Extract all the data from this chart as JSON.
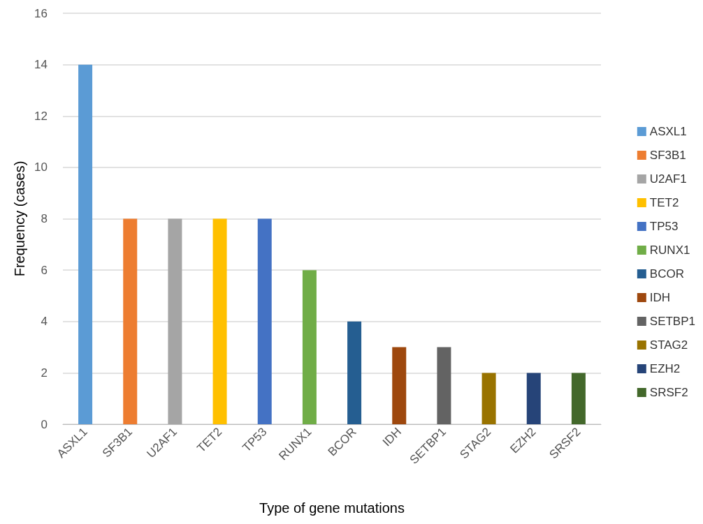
{
  "chart_data": {
    "type": "bar",
    "xlabel": "Type of gene mutations",
    "ylabel": "Frequency (cases)",
    "categories": [
      "ASXL1",
      "SF3B1",
      "U2AF1",
      "TET2",
      "TP53",
      "RUNX1",
      "BCOR",
      "IDH",
      "SETBP1",
      "STAG2",
      "EZH2",
      "SRSF2"
    ],
    "series": [
      {
        "name": "ASXL1",
        "color": "#5b9bd5",
        "values": [
          14,
          null,
          null,
          null,
          null,
          null,
          null,
          null,
          null,
          null,
          null,
          null
        ]
      },
      {
        "name": "SF3B1",
        "color": "#ed7d31",
        "values": [
          null,
          8,
          null,
          null,
          null,
          null,
          null,
          null,
          null,
          null,
          null,
          null
        ]
      },
      {
        "name": "U2AF1",
        "color": "#a5a5a5",
        "values": [
          null,
          null,
          8,
          null,
          null,
          null,
          null,
          null,
          null,
          null,
          null,
          null
        ]
      },
      {
        "name": "TET2",
        "color": "#ffc000",
        "values": [
          null,
          null,
          null,
          8,
          null,
          null,
          null,
          null,
          null,
          null,
          null,
          null
        ]
      },
      {
        "name": "TP53",
        "color": "#4472c4",
        "values": [
          null,
          null,
          null,
          null,
          8,
          null,
          null,
          null,
          null,
          null,
          null,
          null
        ]
      },
      {
        "name": "RUNX1",
        "color": "#70ad47",
        "values": [
          null,
          null,
          null,
          null,
          null,
          6,
          null,
          null,
          null,
          null,
          null,
          null
        ]
      },
      {
        "name": "BCOR",
        "color": "#255e91",
        "values": [
          null,
          null,
          null,
          null,
          null,
          null,
          4,
          null,
          null,
          null,
          null,
          null
        ]
      },
      {
        "name": "IDH",
        "color": "#9e480e",
        "values": [
          null,
          null,
          null,
          null,
          null,
          null,
          null,
          3,
          null,
          null,
          null,
          null
        ]
      },
      {
        "name": "SETBP1",
        "color": "#636363",
        "values": [
          null,
          null,
          null,
          null,
          null,
          null,
          null,
          null,
          3,
          null,
          null,
          null
        ]
      },
      {
        "name": "STAG2",
        "color": "#997300",
        "values": [
          null,
          null,
          null,
          null,
          null,
          null,
          null,
          null,
          null,
          2,
          null,
          null
        ]
      },
      {
        "name": "EZH2",
        "color": "#264478",
        "values": [
          null,
          null,
          null,
          null,
          null,
          null,
          null,
          null,
          null,
          null,
          2,
          null
        ]
      },
      {
        "name": "SRSF2",
        "color": "#43682b",
        "values": [
          null,
          null,
          null,
          null,
          null,
          null,
          null,
          null,
          null,
          null,
          null,
          2
        ]
      }
    ],
    "stacked": true,
    "ylim": [
      0,
      16
    ],
    "yticks": [
      0,
      2,
      4,
      6,
      8,
      10,
      12,
      14,
      16
    ],
    "grid": "y",
    "legend": "right"
  }
}
